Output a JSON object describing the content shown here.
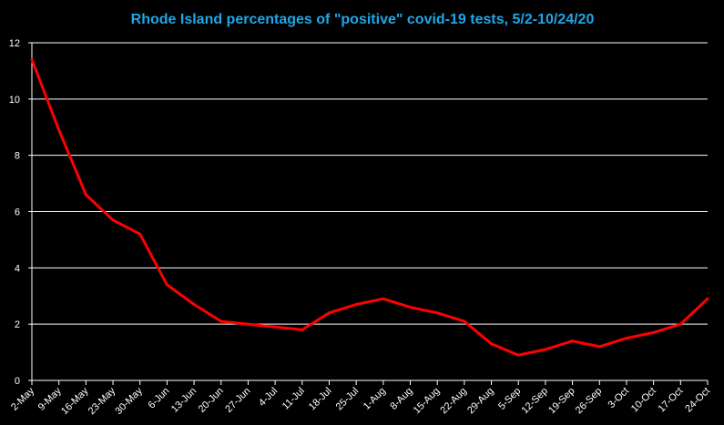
{
  "chart_data": {
    "type": "line",
    "title": "Rhode Island percentages of \"positive\" covid-19 tests, 5/2-10/24/20",
    "xlabel": "",
    "ylabel": "",
    "ylim": [
      0,
      12
    ],
    "yticks": [
      "0",
      "2",
      "4",
      "6",
      "8",
      "10",
      "12"
    ],
    "grid": true,
    "legend": "none",
    "categories": [
      "2-May",
      "9-May",
      "16-May",
      "23-May",
      "30-May",
      "6-Jun",
      "13-Jun",
      "20-Jun",
      "27-Jun",
      "4-Jul",
      "11-Jul",
      "18-Jul",
      "25-Jul",
      "1-Aug",
      "8-Aug",
      "15-Aug",
      "22-Aug",
      "29-Aug",
      "5-Sep",
      "12-Sep",
      "19-Sep",
      "26-Sep",
      "3-Oct",
      "10-Oct",
      "17-Oct",
      "24-Oct"
    ],
    "series": [
      {
        "values": [
          11.4,
          8.9,
          6.6,
          5.7,
          5.2,
          3.4,
          2.7,
          2.1,
          2.0,
          1.9,
          1.8,
          2.4,
          2.7,
          2.9,
          2.6,
          2.4,
          2.1,
          1.3,
          0.9,
          1.1,
          1.4,
          1.2,
          1.5,
          1.7,
          2.0,
          2.9
        ],
        "color": "#ff0000"
      }
    ],
    "colors": {
      "background": "#000000",
      "title": "#1ea7e8",
      "grid": "#ffffff",
      "text": "#ffffff",
      "line": "#ff0000"
    }
  }
}
